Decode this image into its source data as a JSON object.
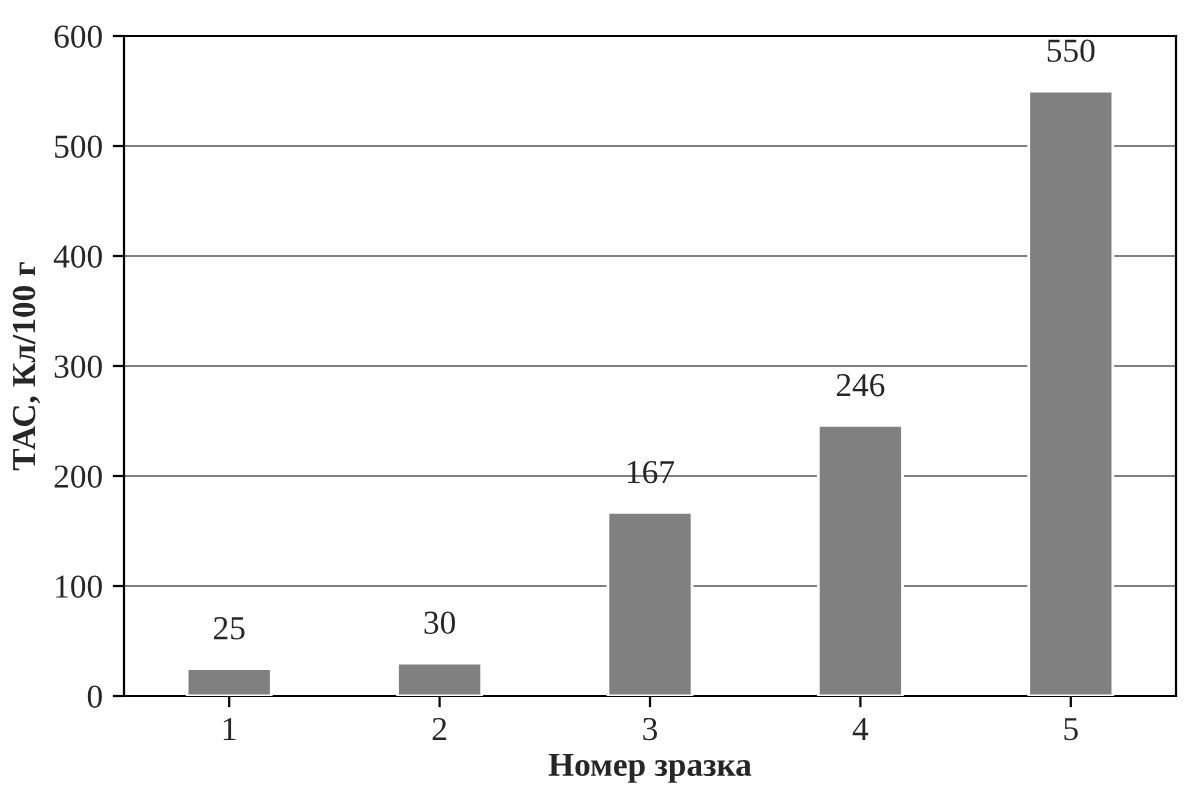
{
  "chart_data": {
    "type": "bar",
    "xlabel": "Номер зразка",
    "ylabel": "ТАС, Кл/100 г",
    "categories": [
      "1",
      "2",
      "3",
      "4",
      "5"
    ],
    "values": [
      25,
      30,
      167,
      246,
      550
    ],
    "color": "#808080",
    "ylim": [
      0,
      600
    ],
    "yticks": [
      0,
      100,
      200,
      300,
      400,
      500,
      600
    ],
    "grid": "y",
    "data_labels": true
  }
}
